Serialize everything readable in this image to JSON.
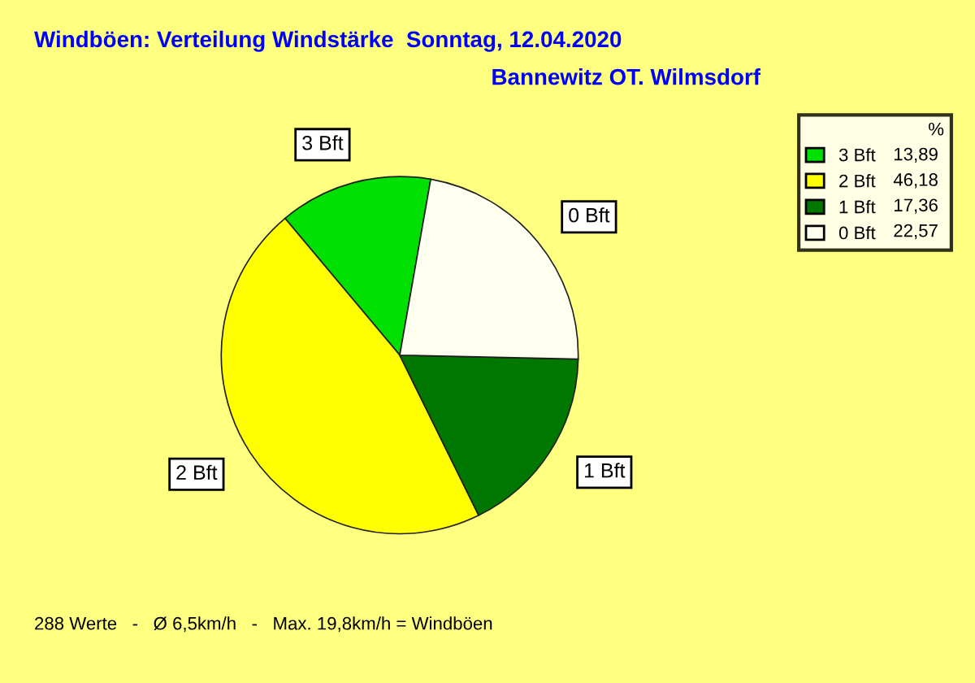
{
  "chart_data": {
    "type": "pie",
    "title": "Windböen: Verteilung Windstärke  Sonntag, 12.04.2020",
    "subtitle": "Bannewitz OT. Wilmsdorf",
    "legend_title": "%",
    "categories": [
      "3 Bft",
      "2 Bft",
      "1 Bft",
      "0 Bft"
    ],
    "values": [
      13.89,
      46.18,
      17.36,
      22.57
    ],
    "value_labels": [
      "13,89",
      "46,18",
      "17,36",
      "22,57"
    ],
    "colors": [
      "#00e000",
      "#ffff00",
      "#007800",
      "#fffff0"
    ],
    "legend": "top right",
    "annotations": [
      "288 Werte   -   Ø 6,5km/h   -   Max. 19,8km/h = Windböen"
    ]
  }
}
